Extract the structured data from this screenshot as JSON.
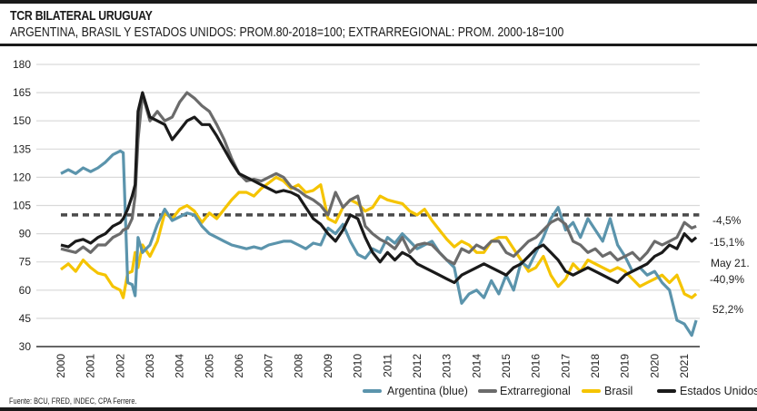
{
  "header": {
    "title": "TCR BILATERAL URUGUAY",
    "subtitle": "ARGENTINA, BRASIL Y ESTADOS UNIDOS: PROM.80-2018=100; EXTRARREGIONAL: PROM. 2000-18=100"
  },
  "footer": {
    "source": "Fuente: BCU, FRED, INDEC, CPA Ferrere."
  },
  "chart_data": {
    "type": "line",
    "title": "TCR BILATERAL URUGUAY",
    "subtitle": "ARGENTINA, BRASIL Y ESTADOS UNIDOS: PROM.80-2018=100; EXTRARREGIONAL: PROM. 2000-18=100",
    "xlabel": "",
    "ylabel": "",
    "xlim": [
      2000,
      2021.7
    ],
    "ylim": [
      30,
      180
    ],
    "yticks": [
      30,
      45,
      60,
      75,
      90,
      105,
      120,
      135,
      150,
      165,
      180
    ],
    "ytick_labels": [
      "30",
      "45",
      "60",
      "75",
      "90",
      "105",
      "120",
      "135",
      "150",
      "165",
      "180"
    ],
    "xticks": [
      "2000",
      "2001",
      "2002",
      "2003",
      "2004",
      "2005",
      "2006",
      "2007",
      "2008",
      "2009",
      "2010",
      "2011",
      "2012",
      "2013",
      "2014",
      "2015",
      "2016",
      "2017",
      "2018",
      "2019",
      "2020",
      "2021"
    ],
    "grid": true,
    "legend_position": "bottom-right",
    "reference_line": {
      "value": 100,
      "style": "dashed",
      "color": "#4a4a4a",
      "x_range": [
        2000,
        2021.5
      ]
    },
    "x": [
      2000.0,
      2000.25,
      2000.5,
      2000.75,
      2001.0,
      2001.25,
      2001.5,
      2001.75,
      2002.0,
      2002.1,
      2002.25,
      2002.4,
      2002.5,
      2002.6,
      2002.75,
      2003.0,
      2003.25,
      2003.5,
      2003.75,
      2004.0,
      2004.25,
      2004.5,
      2004.75,
      2005.0,
      2005.25,
      2005.5,
      2005.75,
      2006.0,
      2006.25,
      2006.5,
      2006.75,
      2007.0,
      2007.25,
      2007.5,
      2007.75,
      2008.0,
      2008.25,
      2008.5,
      2008.75,
      2009.0,
      2009.25,
      2009.5,
      2009.75,
      2010.0,
      2010.25,
      2010.5,
      2010.75,
      2011.0,
      2011.25,
      2011.5,
      2011.75,
      2012.0,
      2012.25,
      2012.5,
      2012.75,
      2013.0,
      2013.25,
      2013.5,
      2013.75,
      2014.0,
      2014.25,
      2014.5,
      2014.75,
      2015.0,
      2015.25,
      2015.5,
      2015.75,
      2016.0,
      2016.25,
      2016.5,
      2016.75,
      2017.0,
      2017.25,
      2017.5,
      2017.75,
      2018.0,
      2018.25,
      2018.5,
      2018.75,
      2019.0,
      2019.25,
      2019.5,
      2019.75,
      2020.0,
      2020.25,
      2020.5,
      2020.75,
      2021.0,
      2021.25,
      2021.4
    ],
    "series": [
      {
        "name": "Argentina (blue)",
        "color": "#5b94ac",
        "end_label": "52,2%",
        "values": [
          122,
          124,
          122,
          125,
          123,
          125,
          128,
          132,
          134,
          133,
          64,
          63,
          57,
          88,
          80,
          84,
          95,
          103,
          97,
          99,
          101,
          100,
          94,
          90,
          88,
          86,
          84,
          83,
          82,
          83,
          82,
          84,
          85,
          86,
          86,
          84,
          82,
          85,
          84,
          93,
          90,
          95,
          86,
          79,
          77,
          82,
          80,
          88,
          85,
          90,
          86,
          82,
          84,
          86,
          80,
          76,
          72,
          53,
          58,
          60,
          56,
          65,
          58,
          68,
          60,
          75,
          72,
          80,
          88,
          98,
          104,
          92,
          96,
          88,
          98,
          92,
          86,
          98,
          84,
          78,
          70,
          72,
          68,
          70,
          64,
          60,
          44,
          42,
          36,
          44,
          50,
          47
        ]
      },
      {
        "name": "Extrarregional",
        "color": "#6b6b6b",
        "end_label": "-4,5%",
        "values": [
          82,
          81,
          80,
          83,
          80,
          84,
          84,
          88,
          90,
          92,
          93,
          98,
          110,
          140,
          164,
          150,
          155,
          150,
          152,
          160,
          165,
          162,
          158,
          155,
          148,
          140,
          130,
          122,
          118,
          119,
          118,
          120,
          122,
          120,
          115,
          113,
          110,
          108,
          105,
          100,
          112,
          104,
          108,
          110,
          94,
          90,
          87,
          85,
          82,
          88,
          80,
          84,
          85,
          84,
          80,
          76,
          74,
          82,
          80,
          84,
          82,
          86,
          86,
          80,
          78,
          82,
          86,
          88,
          92,
          96,
          98,
          95,
          86,
          84,
          80,
          82,
          78,
          80,
          76,
          78,
          80,
          76,
          80,
          86,
          84,
          86,
          88,
          96,
          93,
          94,
          96,
          95
        ]
      },
      {
        "name": "Brasil",
        "color": "#f5c400",
        "end_label": "May 21. -40,9%",
        "values": [
          71,
          74,
          70,
          76,
          72,
          69,
          68,
          62,
          60,
          56,
          69,
          70,
          80,
          72,
          84,
          78,
          86,
          101,
          98,
          103,
          105,
          102,
          96,
          101,
          98,
          103,
          108,
          112,
          112,
          110,
          114,
          117,
          120,
          118,
          114,
          116,
          112,
          113,
          116,
          98,
          96,
          104,
          108,
          106,
          102,
          104,
          110,
          108,
          107,
          106,
          102,
          100,
          103,
          97,
          92,
          87,
          83,
          86,
          84,
          80,
          80,
          86,
          88,
          88,
          82,
          76,
          70,
          72,
          78,
          68,
          62,
          66,
          74,
          70,
          76,
          74,
          72,
          70,
          72,
          70,
          66,
          62,
          64,
          66,
          68,
          64,
          68,
          58,
          56,
          58,
          56,
          58
        ]
      },
      {
        "name": "Estados Unidos",
        "color": "#1a1a1a",
        "end_label": "-15,1%",
        "values": [
          84,
          83,
          86,
          87,
          85,
          88,
          90,
          94,
          96,
          98,
          103,
          110,
          116,
          155,
          165,
          152,
          150,
          148,
          140,
          145,
          150,
          152,
          148,
          148,
          142,
          135,
          128,
          122,
          120,
          118,
          116,
          114,
          112,
          113,
          112,
          110,
          104,
          98,
          95,
          90,
          86,
          92,
          100,
          98,
          88,
          80,
          75,
          80,
          76,
          80,
          78,
          74,
          72,
          70,
          68,
          66,
          64,
          68,
          70,
          72,
          74,
          72,
          70,
          68,
          72,
          74,
          78,
          82,
          84,
          80,
          76,
          70,
          68,
          70,
          72,
          70,
          68,
          66,
          64,
          68,
          70,
          72,
          74,
          78,
          80,
          84,
          82,
          90,
          86,
          88,
          86,
          84
        ]
      }
    ],
    "annotations": [
      {
        "text": "-4,5%",
        "series": "Extrarregional"
      },
      {
        "text": "-15,1%",
        "series": "Estados Unidos"
      },
      {
        "text": "May 21.",
        "series": "Brasil"
      },
      {
        "text": "-40,9%",
        "series": "Brasil"
      },
      {
        "text": "52,2%",
        "series": "Argentina (blue)"
      }
    ]
  }
}
